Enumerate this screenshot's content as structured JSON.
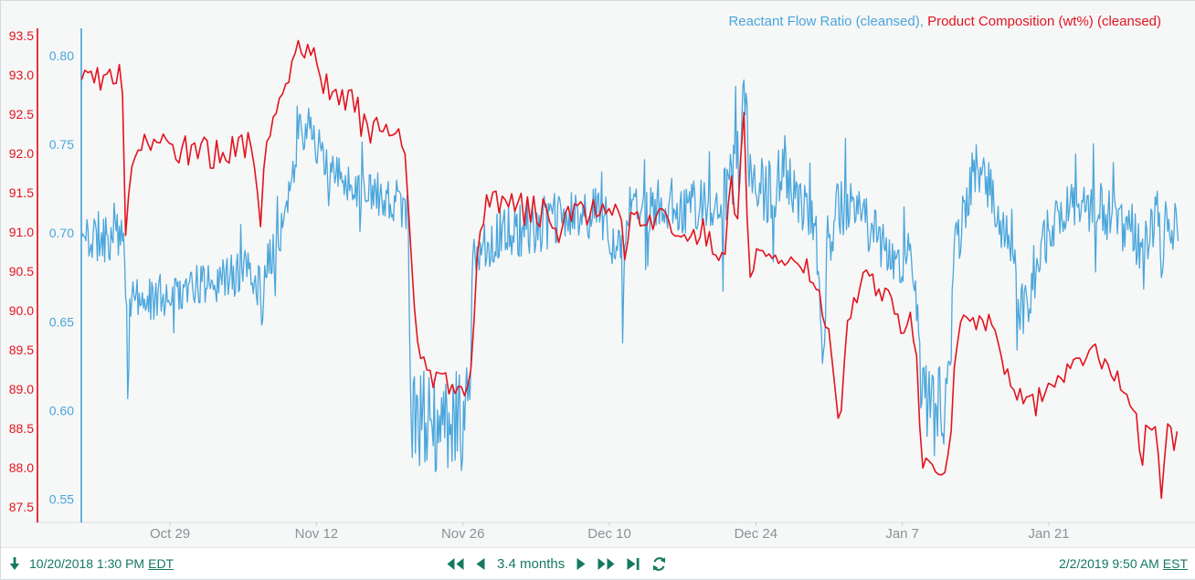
{
  "colors": {
    "blue": "#4aa6dc",
    "red": "#e2141f",
    "teal": "#14795f",
    "x_label_gray": "#8b9298",
    "plot_bg": "#f6f7f7",
    "baseline_gray": "#e1e4e5"
  },
  "legend": {
    "separator": ", ",
    "items": [
      {
        "label": "Reactant Flow Ratio (cleansed)",
        "color": "#4aa6dc"
      },
      {
        "label": "Product Composition (wt%) (cleansed)",
        "color": "#e2141f"
      }
    ]
  },
  "toolbar": {
    "start": {
      "datetime": "10/20/2018 1:30 PM",
      "timezone": "EDT"
    },
    "end": {
      "datetime": "2/2/2019 9:50 AM",
      "timezone": "EST"
    },
    "duration": "3.4 months",
    "icons": [
      "down-arrow-icon",
      "fast-backward-icon",
      "step-backward-icon",
      "step-forward-icon",
      "fast-forward-icon",
      "skip-to-end-icon",
      "refresh-icon"
    ]
  },
  "chart_data": {
    "type": "line",
    "title": "",
    "grid": false,
    "legend_position": "top-right",
    "x_axis": {
      "unit": "days from start",
      "start_label": "10/20/2018 1:30 PM EDT",
      "end_label": "2/2/2019 9:50 AM EST",
      "range_days": [
        0,
        104.85
      ],
      "ticks": [
        {
          "label": "Oct 29",
          "day": 8.44
        },
        {
          "label": "Nov 12",
          "day": 22.44
        },
        {
          "label": "Nov 26",
          "day": 36.44
        },
        {
          "label": "Dec 10",
          "day": 50.44
        },
        {
          "label": "Dec 24",
          "day": 64.44
        },
        {
          "label": "Jan 7",
          "day": 78.44
        },
        {
          "label": "Jan 21",
          "day": 92.44
        }
      ]
    },
    "y_axes": [
      {
        "id": "blue",
        "series": "Reactant Flow Ratio (cleansed)",
        "range": [
          0.537,
          0.812
        ],
        "tick_values": [
          0.8,
          0.75,
          0.7,
          0.65,
          0.6,
          0.55
        ],
        "decimals": 2
      },
      {
        "id": "red",
        "series": "Product Composition (wt%) (cleansed)",
        "range": [
          87.3,
          93.6
        ],
        "tick_values": [
          93.5,
          93.0,
          92.5,
          92.0,
          91.5,
          91.0,
          90.5,
          90.0,
          89.5,
          89.0,
          88.5,
          88.0,
          87.5
        ],
        "decimals": 1
      }
    ],
    "series": [
      {
        "name": "Reactant Flow Ratio (cleansed)",
        "axis": "blue",
        "color_key": "blue",
        "stroke_width": 1.3,
        "render": {
          "step": 0.1,
          "seed": 11,
          "spike_prob": 0.05,
          "spike_mult": 2.4
        },
        "clamp": [
          0.5465,
          0.8135
        ],
        "keypoints": [
          [
            0,
            0.697,
            0.015
          ],
          [
            2,
            0.698,
            0.015
          ],
          [
            3.6,
            0.7,
            0.016
          ],
          [
            4.15,
            0.685,
            0.012
          ],
          [
            4.35,
            0.598,
            0.025
          ],
          [
            4.6,
            0.662,
            0.011
          ],
          [
            6,
            0.663,
            0.012
          ],
          [
            8,
            0.665,
            0.013
          ],
          [
            10,
            0.668,
            0.012
          ],
          [
            12,
            0.672,
            0.012
          ],
          [
            14,
            0.675,
            0.013
          ],
          [
            16.2,
            0.679,
            0.013
          ],
          [
            17.1,
            0.668,
            0.014
          ],
          [
            17.3,
            0.65,
            0.008
          ],
          [
            17.6,
            0.683,
            0.012
          ],
          [
            18.5,
            0.694,
            0.013
          ],
          [
            19.8,
            0.716,
            0.014
          ],
          [
            20.8,
            0.757,
            0.012
          ],
          [
            22.0,
            0.761,
            0.012
          ],
          [
            22.9,
            0.742,
            0.013
          ],
          [
            24,
            0.733,
            0.012
          ],
          [
            26,
            0.728,
            0.012
          ],
          [
            28,
            0.722,
            0.013
          ],
          [
            30,
            0.718,
            0.014
          ],
          [
            31.2,
            0.714,
            0.012
          ],
          [
            31.5,
            0.6,
            0.032
          ],
          [
            33,
            0.59,
            0.03
          ],
          [
            35,
            0.588,
            0.031
          ],
          [
            36.6,
            0.595,
            0.03
          ],
          [
            37.15,
            0.636,
            0.026
          ],
          [
            37.5,
            0.688,
            0.013
          ],
          [
            38.5,
            0.694,
            0.014
          ],
          [
            40,
            0.698,
            0.015
          ],
          [
            42,
            0.702,
            0.015
          ],
          [
            44,
            0.705,
            0.016
          ],
          [
            46,
            0.708,
            0.016
          ],
          [
            48,
            0.71,
            0.016
          ],
          [
            50,
            0.712,
            0.016
          ],
          [
            51.95,
            0.675,
            0.018
          ],
          [
            52.3,
            0.712,
            0.015
          ],
          [
            54,
            0.714,
            0.015
          ],
          [
            56,
            0.716,
            0.016
          ],
          [
            58,
            0.716,
            0.016
          ],
          [
            60,
            0.715,
            0.016
          ],
          [
            61.2,
            0.714,
            0.015
          ],
          [
            61.35,
            0.698,
            0.052
          ],
          [
            61.55,
            0.718,
            0.017
          ],
          [
            62.3,
            0.738,
            0.02
          ],
          [
            62.9,
            0.748,
            0.024
          ],
          [
            63.3,
            0.793,
            0.02
          ],
          [
            63.75,
            0.74,
            0.02
          ],
          [
            64.5,
            0.726,
            0.018
          ],
          [
            66,
            0.722,
            0.018
          ],
          [
            67.3,
            0.738,
            0.019
          ],
          [
            68.3,
            0.72,
            0.016
          ],
          [
            69.6,
            0.71,
            0.015
          ],
          [
            70.4,
            0.688,
            0.018
          ],
          [
            70.8,
            0.613,
            0.014
          ],
          [
            71.3,
            0.698,
            0.014
          ],
          [
            72.5,
            0.714,
            0.02
          ],
          [
            74,
            0.71,
            0.018
          ],
          [
            75.5,
            0.704,
            0.016
          ],
          [
            77,
            0.69,
            0.015
          ],
          [
            78.35,
            0.682,
            0.014
          ],
          [
            79.3,
            0.688,
            0.014
          ],
          [
            79.95,
            0.655,
            0.018
          ],
          [
            80.3,
            0.607,
            0.021
          ],
          [
            81.5,
            0.602,
            0.022
          ],
          [
            82.5,
            0.606,
            0.022
          ],
          [
            83.1,
            0.632,
            0.02
          ],
          [
            83.4,
            0.692,
            0.015
          ],
          [
            84.1,
            0.706,
            0.017
          ],
          [
            84.9,
            0.73,
            0.017
          ],
          [
            85.8,
            0.737,
            0.018
          ],
          [
            86.8,
            0.724,
            0.018
          ],
          [
            87.8,
            0.706,
            0.017
          ],
          [
            88.9,
            0.698,
            0.017
          ],
          [
            89.45,
            0.657,
            0.024
          ],
          [
            90.2,
            0.66,
            0.02
          ],
          [
            90.9,
            0.676,
            0.018
          ],
          [
            91.8,
            0.694,
            0.016
          ],
          [
            93,
            0.704,
            0.016
          ],
          [
            94.5,
            0.711,
            0.017
          ],
          [
            96,
            0.717,
            0.018
          ],
          [
            96.9,
            0.719,
            0.018
          ],
          [
            98,
            0.714,
            0.017
          ],
          [
            99.5,
            0.706,
            0.016
          ],
          [
            100.6,
            0.7,
            0.016
          ],
          [
            101.35,
            0.678,
            0.028
          ],
          [
            101.8,
            0.704,
            0.016
          ],
          [
            102.8,
            0.708,
            0.016
          ],
          [
            103.2,
            0.682,
            0.026
          ],
          [
            103.8,
            0.708,
            0.016
          ],
          [
            104.5,
            0.706,
            0.016
          ],
          [
            104.85,
            0.698,
            0.013
          ]
        ]
      },
      {
        "name": "Product Composition (wt%) (cleansed)",
        "axis": "red",
        "color_key": "red",
        "stroke_width": 1.6,
        "render": {
          "step": 0.3,
          "seed": 97,
          "spike_prob": 0.06,
          "spike_mult": 1.5
        },
        "clamp": [
          87.55,
          93.62
        ],
        "keypoints": [
          [
            0,
            93.05,
            0.2
          ],
          [
            2,
            93.0,
            0.2
          ],
          [
            3.9,
            92.95,
            0.2
          ],
          [
            4.25,
            90.7,
            0.05
          ],
          [
            4.55,
            91.55,
            0.1
          ],
          [
            5.3,
            92.1,
            0.15
          ],
          [
            8,
            92.05,
            0.2
          ],
          [
            12,
            92.0,
            0.22
          ],
          [
            16.2,
            92.05,
            0.22
          ],
          [
            17.1,
            91.1,
            0.05
          ],
          [
            17.5,
            92.15,
            0.1
          ],
          [
            18.5,
            92.5,
            0.15
          ],
          [
            19.5,
            92.9,
            0.18
          ],
          [
            20.8,
            93.3,
            0.18
          ],
          [
            22.3,
            93.25,
            0.2
          ],
          [
            23.5,
            92.85,
            0.2
          ],
          [
            25,
            92.7,
            0.25
          ],
          [
            27,
            92.4,
            0.25
          ],
          [
            29,
            92.15,
            0.2
          ],
          [
            30.9,
            92.05,
            0.15
          ],
          [
            31.35,
            91.0,
            0.05
          ],
          [
            31.9,
            89.8,
            0.08
          ],
          [
            32.6,
            89.35,
            0.1
          ],
          [
            33.5,
            89.1,
            0.15
          ],
          [
            35,
            89.1,
            0.18
          ],
          [
            36.9,
            89.0,
            0.15
          ],
          [
            37.35,
            89.5,
            0.1
          ],
          [
            37.9,
            90.9,
            0.1
          ],
          [
            38.8,
            91.45,
            0.12
          ],
          [
            40,
            91.35,
            0.2
          ],
          [
            42,
            91.3,
            0.22
          ],
          [
            44.5,
            91.25,
            0.2
          ],
          [
            45.6,
            91.0,
            0.15
          ],
          [
            47,
            91.3,
            0.18
          ],
          [
            49,
            91.25,
            0.18
          ],
          [
            51.6,
            91.2,
            0.15
          ],
          [
            52.0,
            90.35,
            0.04
          ],
          [
            52.35,
            91.2,
            0.12
          ],
          [
            54,
            91.2,
            0.18
          ],
          [
            56,
            91.1,
            0.18
          ],
          [
            58,
            91.05,
            0.18
          ],
          [
            59.8,
            90.9,
            0.15
          ],
          [
            61.1,
            90.7,
            0.12
          ],
          [
            61.5,
            90.65,
            0.1
          ],
          [
            62.0,
            91.9,
            0.1
          ],
          [
            62.6,
            91.0,
            0.1
          ],
          [
            63.25,
            92.7,
            0.07
          ],
          [
            63.8,
            90.4,
            0.08
          ],
          [
            64.5,
            90.75,
            0.15
          ],
          [
            66,
            90.8,
            0.18
          ],
          [
            68,
            90.7,
            0.18
          ],
          [
            69.5,
            90.5,
            0.15
          ],
          [
            70.6,
            90.15,
            0.12
          ],
          [
            71.6,
            89.6,
            0.12
          ],
          [
            72.4,
            88.45,
            0.1
          ],
          [
            73.2,
            89.95,
            0.12
          ],
          [
            74.5,
            90.3,
            0.2
          ],
          [
            76,
            90.3,
            0.25
          ],
          [
            77.5,
            90.05,
            0.18
          ],
          [
            78.35,
            89.65,
            0.12
          ],
          [
            79.2,
            89.95,
            0.1
          ],
          [
            79.9,
            89.3,
            0.08
          ],
          [
            80.25,
            88.1,
            0.12
          ],
          [
            81.5,
            88.05,
            0.12
          ],
          [
            82.4,
            87.9,
            0.1
          ],
          [
            83.0,
            88.2,
            0.08
          ],
          [
            83.35,
            89.3,
            0.1
          ],
          [
            84.3,
            90.0,
            0.12
          ],
          [
            85.5,
            89.95,
            0.15
          ],
          [
            87.0,
            89.85,
            0.15
          ],
          [
            87.7,
            89.5,
            0.12
          ],
          [
            88.6,
            89.15,
            0.12
          ],
          [
            89.6,
            88.9,
            0.15
          ],
          [
            90.6,
            88.75,
            0.18
          ],
          [
            91.8,
            88.8,
            0.15
          ],
          [
            93.0,
            89.1,
            0.15
          ],
          [
            94.5,
            89.3,
            0.15
          ],
          [
            96.0,
            89.45,
            0.15
          ],
          [
            96.9,
            89.5,
            0.12
          ],
          [
            98.0,
            89.3,
            0.15
          ],
          [
            99.7,
            89.0,
            0.12
          ],
          [
            100.8,
            88.65,
            0.1
          ],
          [
            101.35,
            87.95,
            0.1
          ],
          [
            101.8,
            88.6,
            0.1
          ],
          [
            102.6,
            88.55,
            0.12
          ],
          [
            103.2,
            87.7,
            0.1
          ],
          [
            103.7,
            88.5,
            0.12
          ],
          [
            104.4,
            88.4,
            0.12
          ],
          [
            104.85,
            88.6,
            0.05
          ]
        ]
      }
    ]
  }
}
